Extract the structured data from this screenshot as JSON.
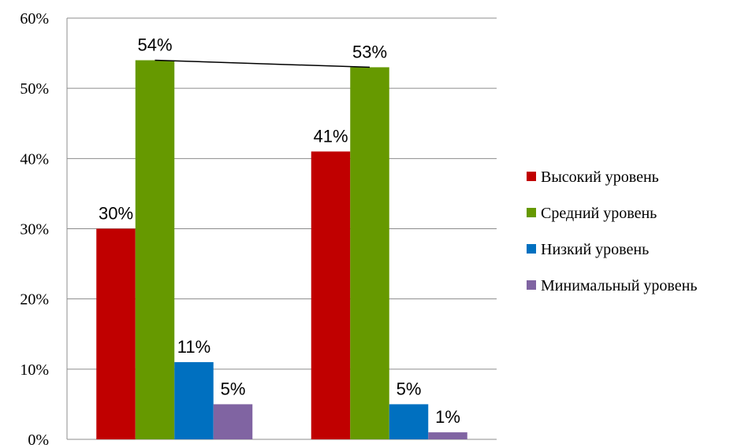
{
  "chart_data": {
    "type": "bar",
    "title": "",
    "xlabel": "",
    "ylabel": "",
    "categories": [
      "",
      ""
    ],
    "ylim": [
      0,
      60
    ],
    "yticks": [
      "0%",
      "10%",
      "20%",
      "30%",
      "40%",
      "50%",
      "60%"
    ],
    "grid": true,
    "legend_position": "right",
    "series": [
      {
        "name": "Высокий уровень",
        "color": "#c00000",
        "values": [
          30,
          41
        ],
        "labels": [
          "30%",
          "41%"
        ]
      },
      {
        "name": "Средний уровень",
        "color": "#669900",
        "values": [
          54,
          53
        ],
        "labels": [
          "54%",
          "53%"
        ]
      },
      {
        "name": "Низкий уровень",
        "color": "#0070c0",
        "values": [
          11,
          5
        ],
        "labels": [
          "11%",
          "5%"
        ]
      },
      {
        "name": "Минимальный уровень",
        "color": "#8064a2",
        "values": [
          5,
          1
        ],
        "labels": [
          "5%",
          "1%"
        ]
      }
    ],
    "annotations": [
      {
        "type": "line",
        "from": {
          "category": 0,
          "series": 1
        },
        "to": {
          "category": 1,
          "series": 1
        }
      }
    ]
  }
}
